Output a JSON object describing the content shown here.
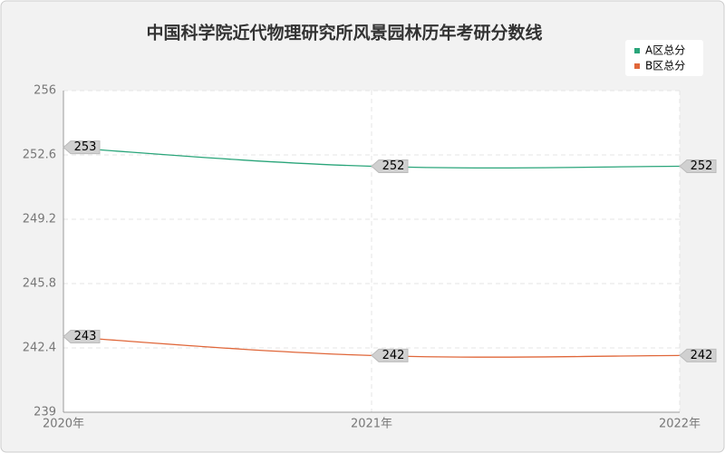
{
  "chart_data": {
    "type": "line",
    "title": "中国科学院近代物理研究所风景园林历年考研分数线",
    "categories": [
      "2020年",
      "2021年",
      "2022年"
    ],
    "series": [
      {
        "name": "A区总分",
        "color": "#2aa57a",
        "values": [
          253,
          252,
          252
        ]
      },
      {
        "name": "B区总分",
        "color": "#e0673a",
        "values": [
          243,
          242,
          242
        ]
      }
    ],
    "ylim": [
      239,
      256
    ],
    "yticks": [
      239,
      242.4,
      245.8,
      249.2,
      252.6,
      256
    ],
    "grid": true,
    "legend": "top-right"
  }
}
